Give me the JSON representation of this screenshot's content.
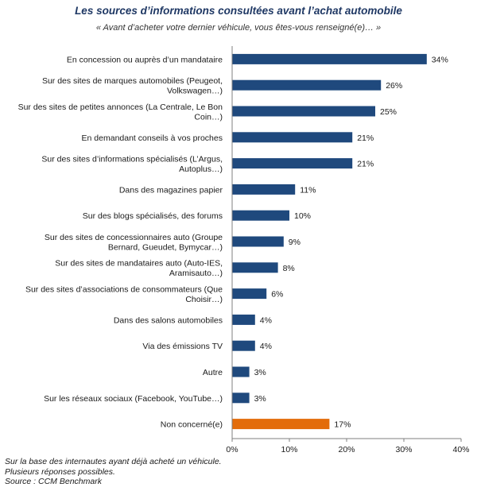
{
  "title": "Les sources d’informations consultées avant l’achat automobile",
  "subtitle": "« Avant d’acheter votre dernier véhicule, vous êtes-vous renseigné(e)… »",
  "footnote": [
    "Sur la base des internautes ayant déjà acheté un véhicule.",
    "Plusieurs réponses possibles.",
    "Source : CCM Benchmark"
  ],
  "colors": {
    "bar": "#1f497d",
    "highlight": "#e36c0a",
    "axis": "#7f7f7f"
  },
  "chart_data": {
    "type": "bar",
    "orientation": "horizontal",
    "categories": [
      [
        "En concession ou auprès d’un mandataire"
      ],
      [
        "Sur des sites de marques automobiles (Peugeot,",
        "Volkswagen…)"
      ],
      [
        "Sur des sites de petites annonces (La Centrale, Le Bon",
        "Coin…)"
      ],
      [
        "En demandant conseils à vos proches"
      ],
      [
        "Sur des sites d’informations spécialisés (L’Argus,",
        "Autoplus…)"
      ],
      [
        "Dans des magazines papier"
      ],
      [
        "Sur des blogs spécialisés, des forums"
      ],
      [
        "Sur des sites de concessionnaires auto (Groupe",
        "Bernard, Gueudet, Bymycar…)"
      ],
      [
        "Sur des sites de mandataires auto (Auto-IES,",
        "Aramisauto…)"
      ],
      [
        "Sur des sites d’associations de consommateurs (Que",
        "Choisir…)"
      ],
      [
        "Dans des salons automobiles"
      ],
      [
        "Via des émissions TV"
      ],
      [
        "Autre"
      ],
      [
        "Sur les réseaux sociaux (Facebook, YouTube…)"
      ],
      [
        "Non concerné(e)"
      ]
    ],
    "values": [
      34,
      26,
      25,
      21,
      21,
      11,
      10,
      9,
      8,
      6,
      4,
      4,
      3,
      3,
      17
    ],
    "value_labels": [
      "34%",
      "26%",
      "25%",
      "21%",
      "21%",
      "11%",
      "10%",
      "9%",
      "8%",
      "6%",
      "4%",
      "4%",
      "3%",
      "3%",
      "17%"
    ],
    "highlight_index": 14,
    "xlim": [
      0,
      40
    ],
    "xticks": [
      0,
      10,
      20,
      30,
      40
    ],
    "xtick_labels": [
      "0%",
      "10%",
      "20%",
      "30%",
      "40%"
    ],
    "grid": false,
    "legend": "none"
  }
}
